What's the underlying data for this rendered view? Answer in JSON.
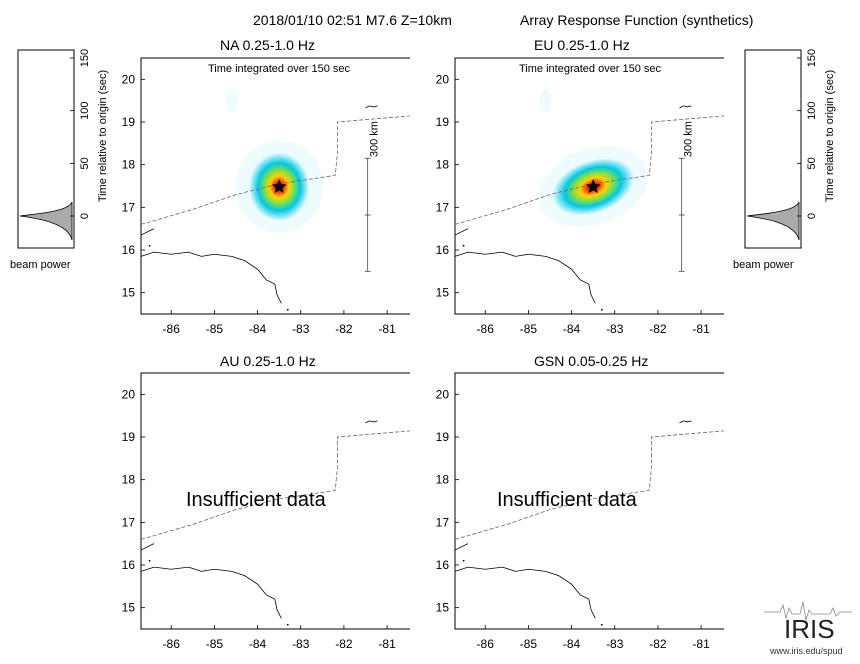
{
  "header": {
    "event": "2018/01/10 02:51  M7.6  Z=10km",
    "product": "Array Response Function (synthetics)"
  },
  "panels": [
    {
      "id": "na",
      "label": "NA  0.25-1.0 Hz",
      "note": "Time integrated over 150 sec",
      "status": "",
      "has_beam": true
    },
    {
      "id": "eu",
      "label": "EU  0.25-1.0 Hz",
      "note": "Time integrated over 150 sec",
      "status": "",
      "has_beam": true
    },
    {
      "id": "au",
      "label": "AU  0.25-1.0 Hz",
      "note": "",
      "status": "Insufficient data",
      "has_beam": false
    },
    {
      "id": "gsn",
      "label": "GSN  0.05-0.25 Hz",
      "note": "",
      "status": "Insufficient data",
      "has_beam": false
    }
  ],
  "map_axes": {
    "lon_ticks": [
      "-86",
      "-85",
      "-84",
      "-83",
      "-82",
      "-81"
    ],
    "lat_ticks": [
      "20",
      "19",
      "18",
      "17",
      "16",
      "15"
    ],
    "lon_range": [
      -86.7,
      -80.4
    ],
    "lat_range": [
      14.5,
      20.5
    ]
  },
  "epicenter": {
    "lon": -83.5,
    "lat": 17.48
  },
  "scale_bar": "300 km",
  "beam_plot": {
    "ylabel": "Time relative to origin (sec)",
    "xlabel": "beam power",
    "ticks": [
      "150",
      "100",
      "50",
      "0"
    ],
    "peak_time_sec": 0
  },
  "colors": {
    "beam_core": "#8b0000",
    "beam_mid": "#ffd200",
    "beam_outer": "#00c8e6",
    "trench": "#666666"
  },
  "logo": {
    "text": "IRIS",
    "url": "www.iris.edu/spud"
  }
}
